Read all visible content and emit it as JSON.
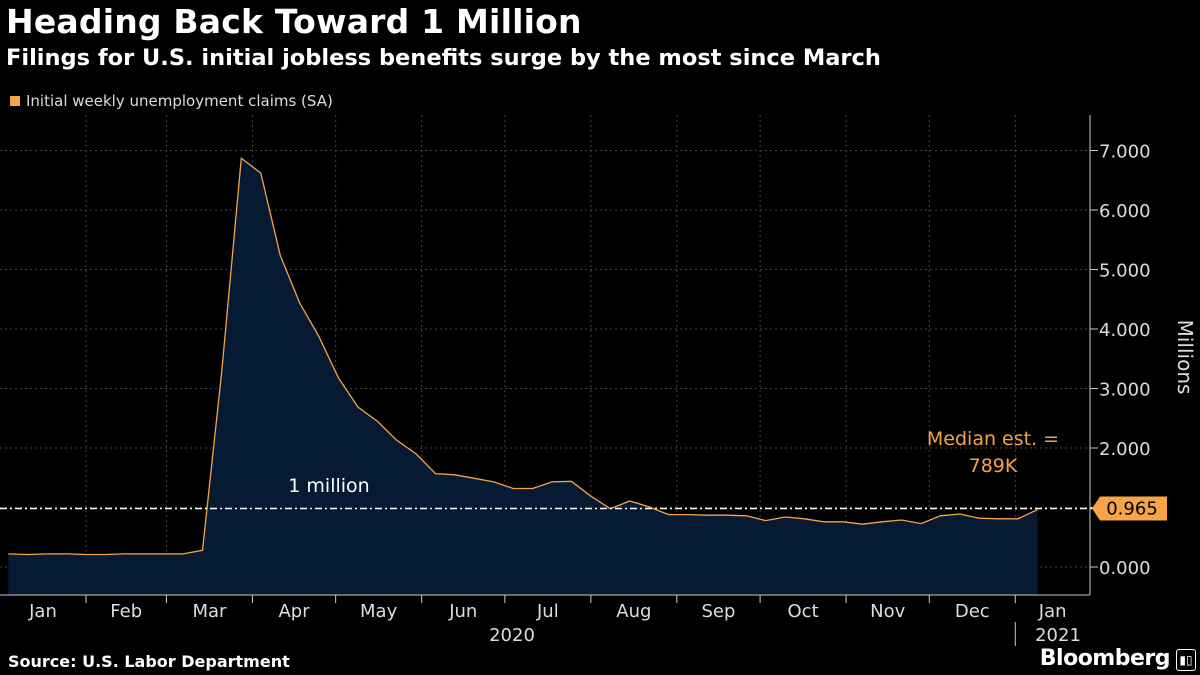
{
  "header": {
    "title": "Heading Back Toward 1 Million",
    "subtitle": "Filings for U.S. initial jobless benefits surge by the most since March"
  },
  "footer": {
    "source": "Source: U.S. Labor Department",
    "brand": "Bloomberg",
    "brand_icon": "bloomberg-terminal-icon"
  },
  "colors": {
    "background": "#000000",
    "line": "#f5a447",
    "fill": "#061a33",
    "grid": "#444444",
    "accent": "#f5a447"
  },
  "chart_data": {
    "type": "area",
    "title": "Heading Back Toward 1 Million",
    "subtitle": "Filings for U.S. initial jobless benefits surge by the most since March",
    "ylabel": "Millions",
    "ylim": [
      -0.5,
      7.5
    ],
    "y_ticks": [
      "0.000",
      "1.000",
      "2.000",
      "3.000",
      "4.000",
      "5.000",
      "6.000",
      "7.000"
    ],
    "y_tick_values": [
      0,
      1,
      2,
      3,
      4,
      5,
      6,
      7
    ],
    "x_labels": [
      "Jan",
      "Feb",
      "Mar",
      "Apr",
      "May",
      "Jun",
      "Jul",
      "Aug",
      "Sep",
      "Oct",
      "Nov",
      "Dec",
      "Jan"
    ],
    "x_year_labels": [
      "2020",
      "2021"
    ],
    "grid": true,
    "legend_position": "top-left",
    "series": [
      {
        "name": "Initial weekly unemployment claims (SA)",
        "x": [
          "2020-01-04",
          "2020-01-11",
          "2020-01-18",
          "2020-01-25",
          "2020-02-01",
          "2020-02-08",
          "2020-02-15",
          "2020-02-22",
          "2020-02-29",
          "2020-03-07",
          "2020-03-14",
          "2020-03-21",
          "2020-03-28",
          "2020-04-04",
          "2020-04-11",
          "2020-04-18",
          "2020-04-25",
          "2020-05-02",
          "2020-05-09",
          "2020-05-16",
          "2020-05-23",
          "2020-05-30",
          "2020-06-06",
          "2020-06-13",
          "2020-06-20",
          "2020-06-27",
          "2020-07-04",
          "2020-07-11",
          "2020-07-18",
          "2020-07-25",
          "2020-08-01",
          "2020-08-08",
          "2020-08-15",
          "2020-08-22",
          "2020-08-29",
          "2020-09-05",
          "2020-09-12",
          "2020-09-19",
          "2020-09-26",
          "2020-10-03",
          "2020-10-10",
          "2020-10-17",
          "2020-10-24",
          "2020-10-31",
          "2020-11-07",
          "2020-11-14",
          "2020-11-21",
          "2020-11-28",
          "2020-12-05",
          "2020-12-12",
          "2020-12-19",
          "2020-12-26",
          "2021-01-02",
          "2021-01-09"
        ],
        "values": [
          0.22,
          0.21,
          0.22,
          0.22,
          0.21,
          0.21,
          0.22,
          0.22,
          0.22,
          0.22,
          0.28,
          3.31,
          6.87,
          6.62,
          5.24,
          4.44,
          3.87,
          3.18,
          2.69,
          2.45,
          2.13,
          1.9,
          1.57,
          1.55,
          1.49,
          1.43,
          1.32,
          1.32,
          1.43,
          1.44,
          1.19,
          0.98,
          1.11,
          1.01,
          0.88,
          0.88,
          0.87,
          0.87,
          0.86,
          0.78,
          0.84,
          0.81,
          0.76,
          0.76,
          0.72,
          0.76,
          0.79,
          0.73,
          0.86,
          0.89,
          0.82,
          0.81,
          0.81,
          0.965
        ]
      }
    ],
    "reference_line": {
      "value": 1.0,
      "label": "1 million"
    },
    "annotations": [
      {
        "text_line1": "Median est. =",
        "text_line2": "789K"
      }
    ],
    "last_value_label": "0.965"
  }
}
